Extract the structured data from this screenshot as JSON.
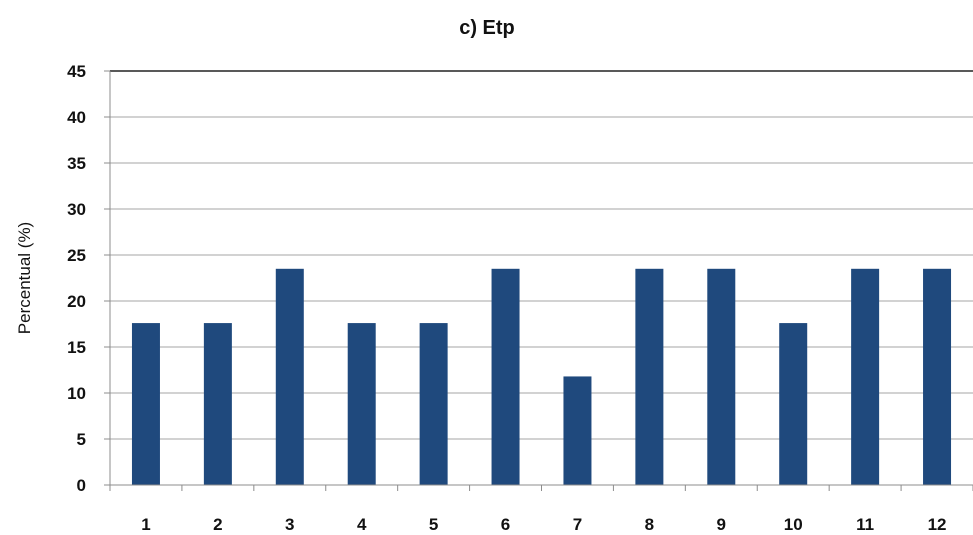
{
  "chart_data": {
    "type": "bar",
    "title": "c) Etp",
    "ylabel": "Percentual (%)",
    "xlabel": "",
    "categories": [
      "1",
      "2",
      "3",
      "4",
      "5",
      "6",
      "7",
      "8",
      "9",
      "10",
      "11",
      "12"
    ],
    "values": [
      17.6,
      17.6,
      23.5,
      17.6,
      17.6,
      23.5,
      11.8,
      23.5,
      23.5,
      17.6,
      23.5,
      23.5
    ],
    "ylim": [
      0,
      45
    ],
    "yticks": [
      "0",
      "5",
      "10",
      "15",
      "20",
      "25",
      "30",
      "35",
      "40",
      "45"
    ],
    "grid": true,
    "bar_color": "#1f497d"
  }
}
